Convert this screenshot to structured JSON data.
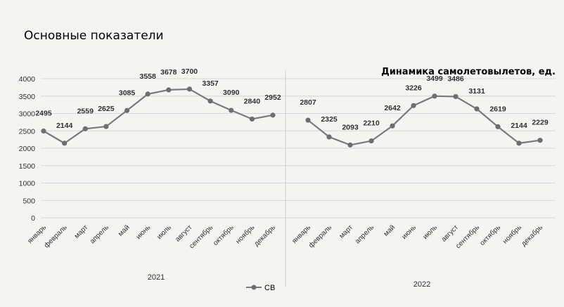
{
  "header": {
    "title": "Основные показатели",
    "subtitle": "Динамика самолетовылетов, ед."
  },
  "legend": {
    "label": "СВ"
  },
  "colors": {
    "line": "#7a7a7a",
    "marker": "#6e6e6e",
    "grid": "#d6d6d6",
    "text": "#2f2f2f"
  },
  "chart_data": {
    "type": "line",
    "title": "Основные показатели",
    "subtitle": "Динамика самолетовылетов, ед.",
    "ylim": [
      0,
      4000
    ],
    "yticks": [
      0,
      500,
      1000,
      1500,
      2000,
      2500,
      3000,
      3500,
      4000
    ],
    "grid": true,
    "legend_position": "bottom",
    "groups": [
      {
        "label": "2021",
        "categories": [
          "январь",
          "февраль",
          "март",
          "апрель",
          "май",
          "июнь",
          "июль",
          "август",
          "сентябрь",
          "октябрь",
          "ноябрь",
          "декабрь"
        ],
        "values": [
          2495,
          2144,
          2559,
          2625,
          3085,
          3558,
          3678,
          3700,
          3357,
          3090,
          2840,
          2952
        ]
      },
      {
        "label": "2022",
        "categories": [
          "январь",
          "февраль",
          "март",
          "апрель",
          "май",
          "июнь",
          "июль",
          "август",
          "сентябрь",
          "октябрь",
          "ноябрь",
          "декабрь"
        ],
        "values": [
          2807,
          2325,
          2093,
          2210,
          2642,
          3226,
          3499,
          3486,
          3131,
          2619,
          2144,
          2229
        ]
      }
    ],
    "series": [
      {
        "name": "СВ"
      }
    ]
  }
}
